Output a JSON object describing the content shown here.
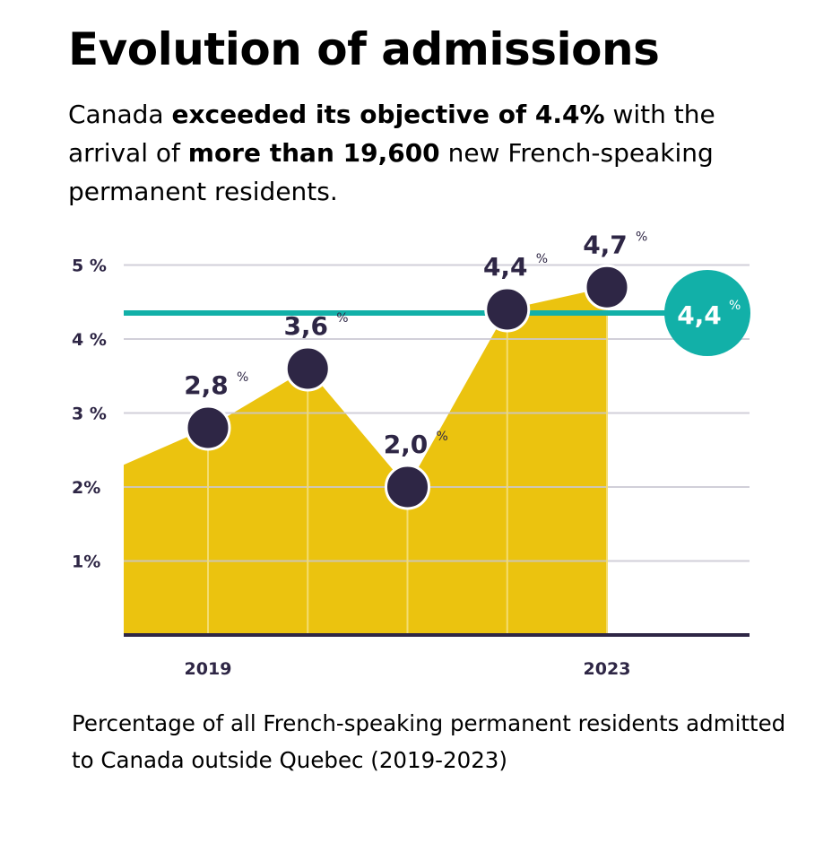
{
  "header": {
    "title": "Evolution of admissions",
    "subtitle": {
      "p1": "Canada ",
      "b1": "exceeded its objective of 4.4%",
      "p2": " with the arrival of ",
      "b2": "more than 19,600",
      "p3": " new French-speaking permanent residents."
    }
  },
  "caption": "Percentage of all French-speaking permanent residents admitted to Canada outside Quebec (2019-2023)",
  "chart_data": {
    "type": "area",
    "title": "",
    "xlabel": "",
    "ylabel": "",
    "x": [
      2019,
      2020,
      2021,
      2022,
      2023
    ],
    "x_tick_labels": [
      {
        "x": 2019,
        "label": "2019"
      },
      {
        "x": 2023,
        "label": "2023"
      }
    ],
    "series": [
      {
        "values": [
          2.8,
          3.6,
          2.0,
          4.4,
          4.7
        ],
        "labels": [
          "2,8",
          "3,6",
          "2,0",
          "4,4",
          "4,7"
        ],
        "label_suffix": "%"
      }
    ],
    "target": {
      "value": 4.4,
      "label": "4,4",
      "suffix": "%"
    },
    "ylim": [
      0,
      5
    ],
    "y_ticks": [
      {
        "v": 1,
        "label": "1%"
      },
      {
        "v": 2,
        "label": "2%"
      },
      {
        "v": 3,
        "label": "3 %"
      },
      {
        "v": 4,
        "label": "4 %"
      },
      {
        "v": 5,
        "label": "5 %"
      }
    ],
    "grid": true,
    "legend": "none",
    "colors": {
      "area": "#ebc30f",
      "points": "#2e2645",
      "target": "#12b0a8",
      "grid": "#c9c7d2",
      "axis": "#2e2645"
    }
  }
}
